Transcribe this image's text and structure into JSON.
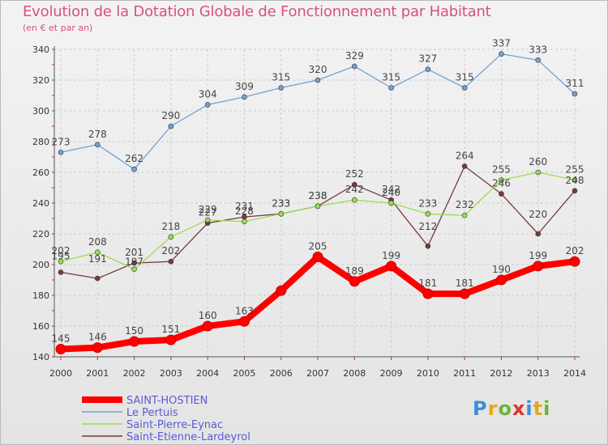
{
  "title": "Evolution de la Dotation Globale de Fonctionnement par Habitant",
  "subtitle": "(en € et par an)",
  "logo": {
    "text": "Proxiti",
    "colors": [
      "#3a8fd6",
      "#e8a51c",
      "#6ab43a",
      "#e0312b",
      "#3a8fd6",
      "#e8a51c",
      "#6ab43a"
    ]
  },
  "chart_data": {
    "type": "line",
    "title": "Evolution de la Dotation Globale de Fonctionnement par Habitant",
    "ylabel": "(en € et par an)",
    "x": [
      "2000",
      "2001",
      "2002",
      "2003",
      "2004",
      "2005",
      "2006",
      "2007",
      "2008",
      "2009",
      "2010",
      "2011",
      "2012",
      "2013",
      "2014"
    ],
    "ylim": [
      140,
      340
    ],
    "yticks": [
      140,
      160,
      180,
      200,
      220,
      240,
      260,
      280,
      300,
      320,
      340
    ],
    "grid": true,
    "legend": "bottom-left",
    "series": [
      {
        "name": "SAINT-HOSTIEN",
        "color": "#ff0000",
        "values": [
          145,
          146,
          150,
          151,
          160,
          163,
          183,
          205,
          189,
          199,
          181,
          181,
          190,
          199,
          202
        ],
        "labels": [
          "145",
          "146",
          "150",
          "151",
          "160",
          "163",
          "",
          "205",
          "189",
          "199",
          "181",
          "181",
          "190",
          "199",
          "202"
        ]
      },
      {
        "name": "Le Pertuis",
        "color": "#6fa3d4",
        "values": [
          273,
          278,
          262,
          290,
          304,
          309,
          315,
          320,
          329,
          315,
          327,
          315,
          337,
          333,
          311
        ],
        "labels": [
          "273",
          "278",
          "262",
          "290",
          "304",
          "309",
          "315",
          "320",
          "329",
          "315",
          "327",
          "315",
          "337",
          "333",
          "311"
        ]
      },
      {
        "name": "Saint-Pierre-Eynac",
        "color": "#99dd55",
        "values": [
          202,
          208,
          197,
          218,
          229,
          228,
          233,
          238,
          242,
          240,
          233,
          232,
          255,
          260,
          255
        ],
        "labels": [
          "202",
          "208",
          "197",
          "218",
          "229",
          "228",
          "233",
          "238",
          "242",
          "240",
          "233",
          "232",
          "255",
          "260",
          "255"
        ]
      },
      {
        "name": "Saint-Etienne-Lardeyrol",
        "color": "#7a3a3a",
        "values": [
          195,
          191,
          201,
          202,
          227,
          231,
          233,
          238,
          252,
          242,
          212,
          264,
          246,
          220,
          248
        ],
        "labels": [
          "195",
          "191",
          "201",
          "202",
          "227",
          "231",
          "233",
          "238",
          "252",
          "242",
          "212",
          "264",
          "246",
          "220",
          "248"
        ]
      }
    ]
  }
}
